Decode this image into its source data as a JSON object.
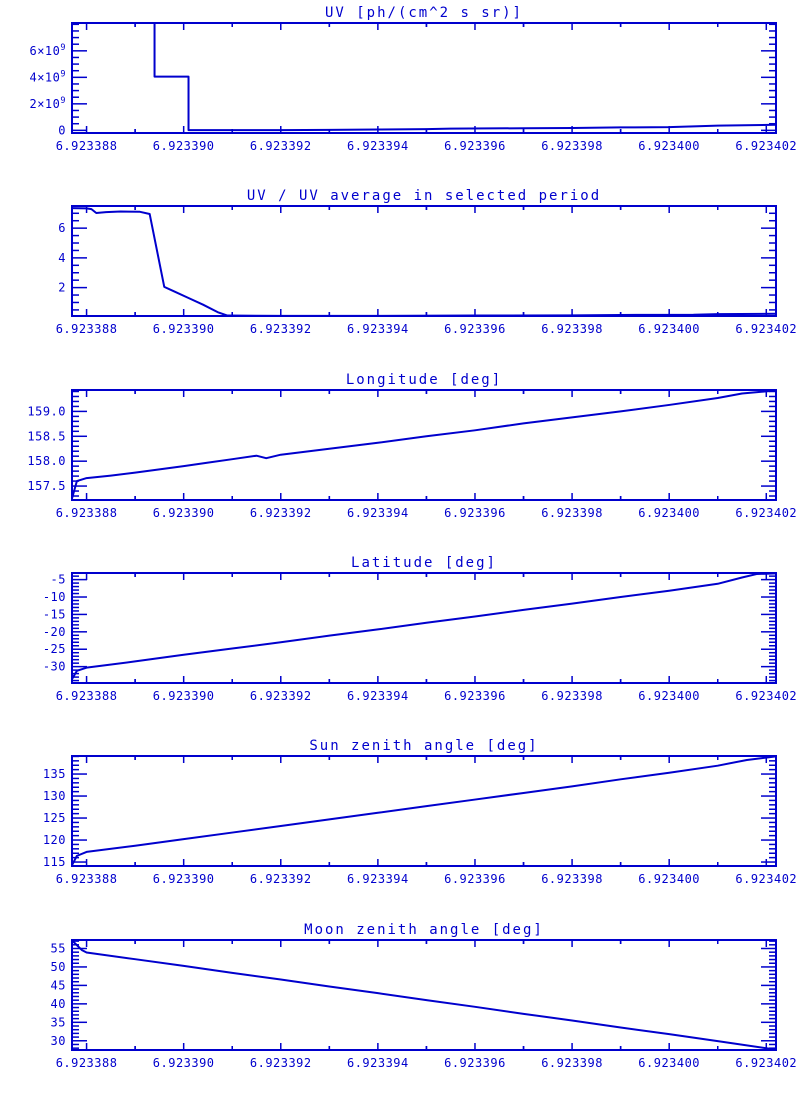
{
  "page": {
    "background": "#ffffff",
    "accent": "#0000cd"
  },
  "x_axis": {
    "lim": [
      6.9233877,
      6.9234022
    ],
    "tick_values": [
      6.923388,
      6.92339,
      6.923392,
      6.923394,
      6.923396,
      6.923398,
      6.9234,
      6.923402
    ],
    "tick_labels": [
      "6.923388",
      "6.923390",
      "6.923392",
      "6.923394",
      "6.923396",
      "6.923398",
      "6.923400",
      "6.923402"
    ],
    "minor_step": 1e-06
  },
  "chart_data": [
    {
      "id": "uv",
      "type": "line",
      "title": "UV [ph/(cm^2 s sr)]",
      "ylabel": "",
      "ylim": [
        -200000000,
        8100000000
      ],
      "y_tick_values": [
        0,
        2000000000,
        4000000000,
        6000000000
      ],
      "y_tick_labels": [
        "0",
        "2×10^9",
        "4×10^9",
        "6×10^9"
      ],
      "y_minor_step": 500000000,
      "grid": false,
      "legend": "none",
      "points": [
        [
          6.9233877,
          8100000000
        ],
        [
          6.9233894,
          8100000000
        ],
        [
          6.9233894,
          4050000000
        ],
        [
          6.9233901,
          4050000000
        ],
        [
          6.9233901,
          20000000
        ],
        [
          6.923392,
          20000000
        ],
        [
          6.923393,
          40000000
        ],
        [
          6.923394,
          60000000
        ],
        [
          6.923395,
          90000000
        ],
        [
          6.9233955,
          130000000
        ],
        [
          6.923397,
          160000000
        ],
        [
          6.923398,
          180000000
        ],
        [
          6.923399,
          220000000
        ],
        [
          6.9234,
          240000000
        ],
        [
          6.923401,
          360000000
        ],
        [
          6.9234022,
          420000000
        ]
      ]
    },
    {
      "id": "uv-ratio",
      "type": "line",
      "title": "UV / UV average in selected period",
      "ylabel": "",
      "ylim": [
        0.09,
        7.49
      ],
      "y_tick_values": [
        2,
        4,
        6
      ],
      "y_tick_labels": [
        "2",
        "4",
        "6"
      ],
      "y_minor_step": 0.5,
      "grid": false,
      "legend": "none",
      "points": [
        [
          6.9233877,
          7.35
        ],
        [
          6.923388,
          7.33
        ],
        [
          6.9233881,
          7.28
        ],
        [
          6.9233882,
          7.02
        ],
        [
          6.9233884,
          7.08
        ],
        [
          6.9233887,
          7.12
        ],
        [
          6.9233891,
          7.1
        ],
        [
          6.9233893,
          6.95
        ],
        [
          6.9233896,
          2.05
        ],
        [
          6.9233898,
          1.75
        ],
        [
          6.9233901,
          1.3
        ],
        [
          6.9233904,
          0.85
        ],
        [
          6.9233907,
          0.35
        ],
        [
          6.9233909,
          0.12
        ],
        [
          6.923392,
          0.1
        ],
        [
          6.923394,
          0.1
        ],
        [
          6.923396,
          0.12
        ],
        [
          6.923398,
          0.13
        ],
        [
          6.923399,
          0.16
        ],
        [
          6.9234005,
          0.17
        ],
        [
          6.923401,
          0.22
        ],
        [
          6.9234022,
          0.24
        ]
      ]
    },
    {
      "id": "longitude",
      "type": "line",
      "title": "Longitude [deg]",
      "ylabel": "",
      "ylim": [
        157.22,
        159.43
      ],
      "y_tick_values": [
        157.5,
        158.0,
        158.5,
        159.0
      ],
      "y_tick_labels": [
        "157.5",
        "158.0",
        "158.5",
        "159.0"
      ],
      "y_minor_step": 0.1,
      "grid": false,
      "legend": "none",
      "points": [
        [
          6.9233877,
          157.25
        ],
        [
          6.9233878,
          157.6
        ],
        [
          6.923388,
          157.66
        ],
        [
          6.9233885,
          157.71
        ],
        [
          6.923389,
          157.77
        ],
        [
          6.92339,
          157.9
        ],
        [
          6.9233905,
          157.97
        ],
        [
          6.923391,
          158.04
        ],
        [
          6.9233915,
          158.11
        ],
        [
          6.9233917,
          158.06
        ],
        [
          6.923392,
          158.13
        ],
        [
          6.923393,
          158.25
        ],
        [
          6.923394,
          158.37
        ],
        [
          6.923395,
          158.5
        ],
        [
          6.923396,
          158.62
        ],
        [
          6.923397,
          158.76
        ],
        [
          6.9233975,
          158.82
        ],
        [
          6.923398,
          158.88
        ],
        [
          6.923399,
          159.0
        ],
        [
          6.9234,
          159.13
        ],
        [
          6.923401,
          159.27
        ],
        [
          6.9234015,
          159.36
        ],
        [
          6.9234022,
          159.42
        ]
      ]
    },
    {
      "id": "latitude",
      "type": "line",
      "title": "Latitude [deg]",
      "ylabel": "",
      "ylim": [
        -34.7,
        -3.1
      ],
      "y_tick_values": [
        -30,
        -25,
        -20,
        -15,
        -10,
        -5
      ],
      "y_tick_labels": [
        "-30",
        "-25",
        "-20",
        "-15",
        "-10",
        "-5"
      ],
      "y_minor_step": 1,
      "grid": false,
      "legend": "none",
      "points": [
        [
          6.9233877,
          -33.6
        ],
        [
          6.9233878,
          -31.2
        ],
        [
          6.923388,
          -30.3
        ],
        [
          6.923389,
          -28.5
        ],
        [
          6.92339,
          -26.6
        ],
        [
          6.923391,
          -24.8
        ],
        [
          6.923392,
          -23.0
        ],
        [
          6.923393,
          -21.1
        ],
        [
          6.923394,
          -19.3
        ],
        [
          6.923395,
          -17.4
        ],
        [
          6.923396,
          -15.6
        ],
        [
          6.923397,
          -13.7
        ],
        [
          6.923398,
          -11.9
        ],
        [
          6.923399,
          -10.0
        ],
        [
          6.9234,
          -8.2
        ],
        [
          6.923401,
          -6.2
        ],
        [
          6.9234015,
          -4.4
        ],
        [
          6.9234018,
          -3.4
        ],
        [
          6.9234022,
          -3.2
        ]
      ]
    },
    {
      "id": "sun-zenith",
      "type": "line",
      "title": "Sun zenith angle [deg]",
      "ylabel": "",
      "ylim": [
        114.1,
        139.1
      ],
      "y_tick_values": [
        115,
        120,
        125,
        130,
        135
      ],
      "y_tick_labels": [
        "115",
        "120",
        "125",
        "130",
        "135"
      ],
      "y_minor_step": 1,
      "grid": false,
      "legend": "none",
      "points": [
        [
          6.9233877,
          114.3
        ],
        [
          6.9233878,
          116.4
        ],
        [
          6.923388,
          117.3
        ],
        [
          6.923389,
          118.7
        ],
        [
          6.92339,
          120.2
        ],
        [
          6.923391,
          121.7
        ],
        [
          6.923392,
          123.2
        ],
        [
          6.923393,
          124.7
        ],
        [
          6.923394,
          126.2
        ],
        [
          6.923395,
          127.7
        ],
        [
          6.923396,
          129.2
        ],
        [
          6.923397,
          130.7
        ],
        [
          6.923398,
          132.2
        ],
        [
          6.923399,
          133.8
        ],
        [
          6.9234,
          135.3
        ],
        [
          6.923401,
          136.9
        ],
        [
          6.9234016,
          138.2
        ],
        [
          6.9234022,
          139.0
        ]
      ]
    },
    {
      "id": "moon-zenith",
      "type": "line",
      "title": "Moon zenith angle [deg]",
      "ylabel": "",
      "ylim": [
        27.5,
        57.3
      ],
      "y_tick_values": [
        30,
        35,
        40,
        45,
        50,
        55
      ],
      "y_tick_labels": [
        "30",
        "35",
        "40",
        "45",
        "50",
        "55"
      ],
      "y_minor_step": 1,
      "grid": false,
      "legend": "none",
      "points": [
        [
          6.9233877,
          57.2
        ],
        [
          6.9233879,
          54.6
        ],
        [
          6.923388,
          53.9
        ],
        [
          6.923389,
          52.1
        ],
        [
          6.92339,
          50.3
        ],
        [
          6.923391,
          48.4
        ],
        [
          6.923392,
          46.6
        ],
        [
          6.923393,
          44.7
        ],
        [
          6.923394,
          42.9
        ],
        [
          6.923395,
          41.0
        ],
        [
          6.923396,
          39.2
        ],
        [
          6.923397,
          37.3
        ],
        [
          6.923398,
          35.5
        ],
        [
          6.923399,
          33.6
        ],
        [
          6.9234,
          31.8
        ],
        [
          6.923401,
          29.9
        ],
        [
          6.9234022,
          27.6
        ]
      ]
    }
  ]
}
